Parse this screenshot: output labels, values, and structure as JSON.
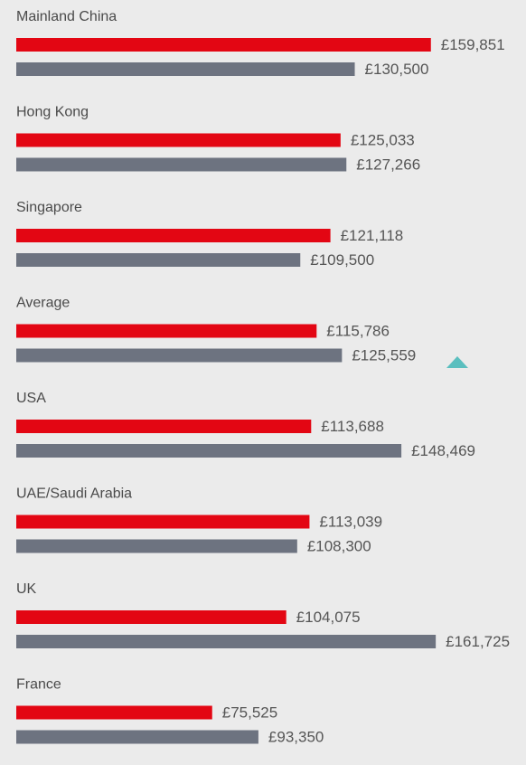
{
  "chart_data": {
    "type": "bar",
    "orientation": "horizontal",
    "categories": [
      "Mainland China",
      "Hong Kong",
      "Singapore",
      "Average",
      "USA",
      "UAE/Saudi Arabia",
      "UK",
      "France"
    ],
    "series": [
      {
        "color": "#e30613",
        "values": [
          159851,
          125033,
          121118,
          115786,
          113688,
          113039,
          104075,
          75525
        ],
        "value_labels": [
          "£159,851",
          "£125,033",
          "£121,118",
          "£115,786",
          "£113,688",
          "£113,039",
          "£104,075",
          "£75,525"
        ]
      },
      {
        "color": "#6d7380",
        "values": [
          130500,
          127266,
          109500,
          125559,
          148469,
          108300,
          161725,
          93350
        ],
        "value_labels": [
          "£130,500",
          "£127,266",
          "£109,500",
          "£125,559",
          "£148,469",
          "£108,300",
          "£161,725",
          "£93,350"
        ]
      }
    ]
  }
}
